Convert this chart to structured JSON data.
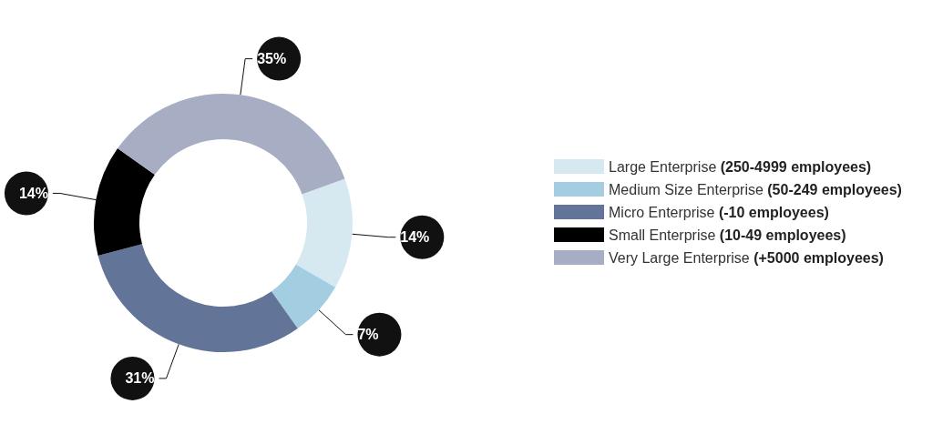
{
  "chart_data": {
    "type": "donut",
    "categories": [
      "Large Enterprise (250-4999 employees)",
      "Medium Size Enterprise (50-249 employees)",
      "Micro Enterprise (-10 employees)",
      "Small Enterprise (10-49 employees)",
      "Very Large Enterprise (+5000 employees)"
    ],
    "values": [
      14,
      7,
      31,
      14,
      35
    ],
    "value_labels": [
      "14%",
      "7%",
      "31%",
      "14%",
      "35%"
    ],
    "colors": [
      "#d6e9f1",
      "#a3cde0",
      "#627497",
      "#000000",
      "#a7adc2"
    ],
    "legend": "right"
  }
}
